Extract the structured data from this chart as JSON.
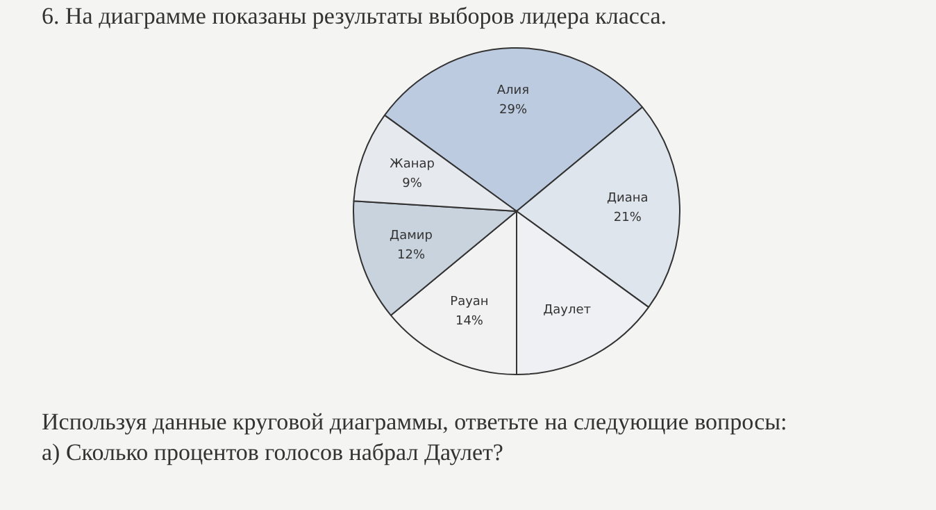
{
  "chart_data": {
    "type": "pie",
    "title": "6. На диаграмме показаны результаты выборов лидера класса.",
    "categories": [
      "Алия",
      "Диана",
      "Даулет",
      "Рауан",
      "Дамир",
      "Жанар"
    ],
    "values": [
      29,
      21,
      15,
      14,
      12,
      9
    ],
    "colors": [
      "#bccbe0",
      "#dfe5ec",
      "#eef0f3",
      "#f2f2f2",
      "#c9d3de",
      "#e6e9ee"
    ],
    "value_labels": [
      "29%",
      "21%",
      null,
      "14%",
      "12%",
      "9%"
    ],
    "annotations": [
      "Используя данные круговой диаграммы, ответьте на следующие вопросы:",
      "а) Сколько процентов голосов набрал Даулет?"
    ],
    "legend": false
  }
}
